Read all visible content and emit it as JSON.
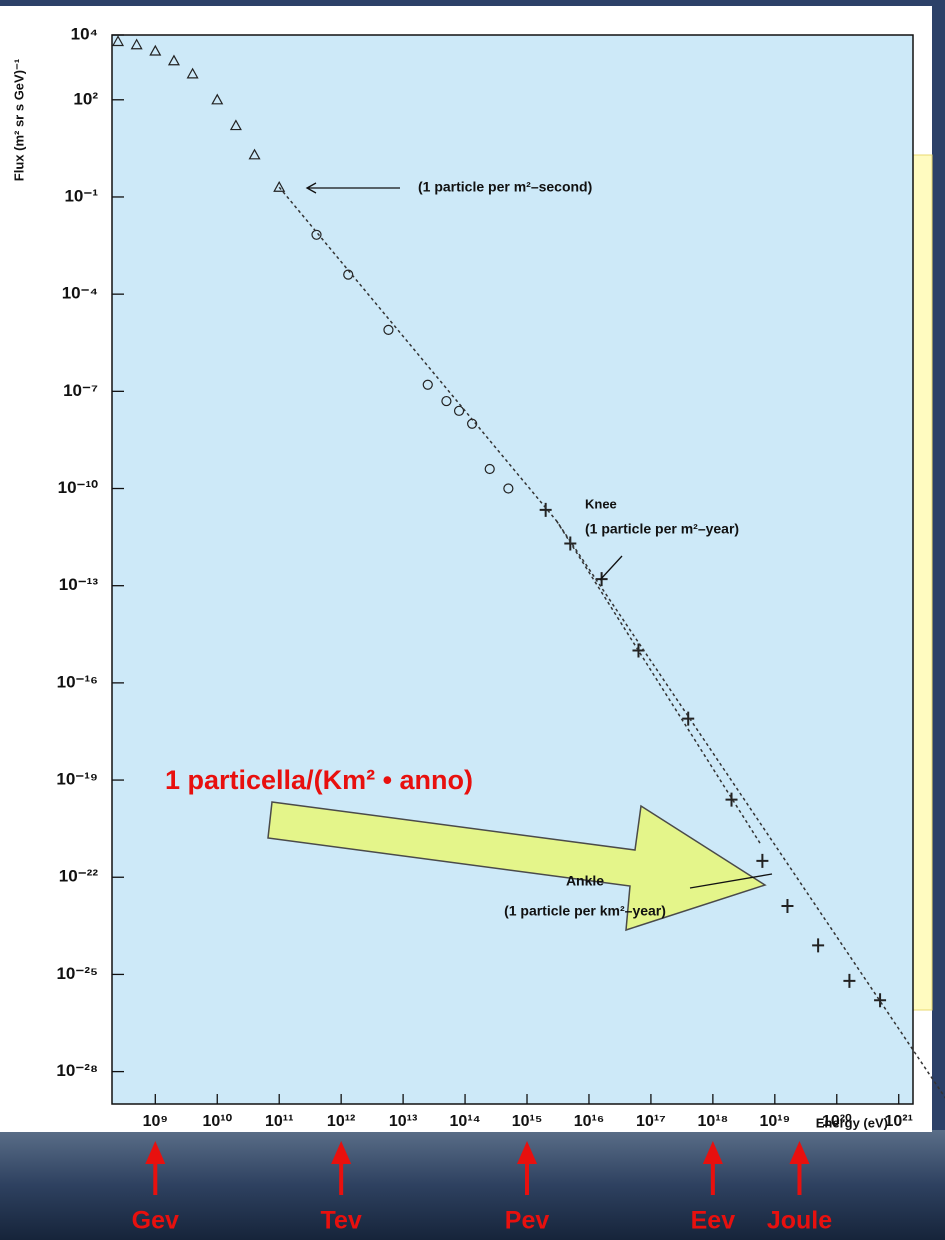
{
  "chart_data": {
    "type": "scatter",
    "y_label": "Flux (m² sr s GeV)⁻¹",
    "x_label": "Energy (eV)",
    "log_x": true,
    "log_y": true,
    "xlim": [
      200000000.0,
      1.7e+21
    ],
    "ylim": [
      1e-29,
      10000.0
    ],
    "xticks": [
      {
        "value": 1000000000.0,
        "label": "10⁹"
      },
      {
        "value": 10000000000.0,
        "label": "10¹⁰"
      },
      {
        "value": 100000000000.0,
        "label": "10¹¹"
      },
      {
        "value": 1000000000000.0,
        "label": "10¹²"
      },
      {
        "value": 10000000000000.0,
        "label": "10¹³"
      },
      {
        "value": 100000000000000.0,
        "label": "10¹⁴"
      },
      {
        "value": 1000000000000000.0,
        "label": "10¹⁵"
      },
      {
        "value": 1e+16,
        "label": "10¹⁶"
      },
      {
        "value": 1e+17,
        "label": "10¹⁷"
      },
      {
        "value": 1e+18,
        "label": "10¹⁸"
      },
      {
        "value": 1e+19,
        "label": "10¹⁹"
      },
      {
        "value": 1e+20,
        "label": "10²⁰"
      },
      {
        "value": 1e+21,
        "label": "10²¹"
      }
    ],
    "yticks": [
      {
        "value": 10000.0,
        "label": "10⁴"
      },
      {
        "value": 100.0,
        "label": "10²"
      },
      {
        "value": 0.1,
        "label": "10⁻¹"
      },
      {
        "value": 0.0001,
        "label": "10⁻⁴"
      },
      {
        "value": 1e-07,
        "label": "10⁻⁷"
      },
      {
        "value": 1e-10,
        "label": "10⁻¹⁰"
      },
      {
        "value": 1e-13,
        "label": "10⁻¹³"
      },
      {
        "value": 1e-16,
        "label": "10⁻¹⁶"
      },
      {
        "value": 1e-19,
        "label": "10⁻¹⁹"
      },
      {
        "value": 1e-22,
        "label": "10⁻²²"
      },
      {
        "value": 1e-25,
        "label": "10⁻²⁵"
      },
      {
        "value": 1e-28,
        "label": "10⁻²⁸"
      }
    ],
    "background": "#cde9f8",
    "series": [
      {
        "marker": "triangle",
        "color": "#222222",
        "x": [
          250000000.0,
          500000000.0,
          1000000000.0,
          2000000000.0,
          4000000000.0,
          10000000000.0,
          20000000000.0,
          40000000000.0,
          100000000000.0
        ],
        "values": [
          6300.0,
          5000.0,
          3200.0,
          1600.0,
          630.0,
          100.0,
          16.0,
          2,
          0.2
        ]
      },
      {
        "marker": "circle",
        "color": "#222222",
        "x": [
          400000000000.0,
          1300000000000.0,
          5800000000000.0,
          25000000000000.0,
          50000000000000.0,
          80000000000000.0,
          130000000000000.0,
          250000000000000.0,
          500000000000000.0
        ],
        "values": [
          0.0068,
          0.0004,
          7.9e-06,
          1.6e-07,
          5e-08,
          2.5e-08,
          1e-08,
          4e-10,
          1e-10
        ]
      },
      {
        "marker": "cross",
        "color": "#222222",
        "x": [
          2000000000000000.0,
          5000000000000000.0,
          1.6e+16,
          6.3e+16,
          4e+17,
          2e+18,
          6.3e+18,
          1.6e+19,
          5e+19,
          1.6e+20,
          5e+20
        ],
        "values": [
          2.2e-11,
          2e-12,
          1.6e-13,
          1e-15,
          7.9e-18,
          2.5e-20,
          3.2e-22,
          1.3e-23,
          7.9e-25,
          6.3e-26,
          1.6e-26
        ]
      },
      {
        "marker": "dashed-line",
        "color": "#333333",
        "x": [
          100000000000.0,
          3000000000000000.0,
          6e+21
        ],
        "values": [
          0.2,
          1e-11,
          1.3e-29
        ]
      },
      {
        "marker": "dashed-line",
        "color": "#333333",
        "x": [
          3000000000000000.0,
          6e+18
        ],
        "values": [
          1e-11,
          1e-21
        ]
      }
    ],
    "annotations": [
      {
        "text": "(1 particle per m²–second)"
      },
      {
        "text": "Knee"
      },
      {
        "text": "(1 particle per m²–year)"
      },
      {
        "text": "Ankle"
      },
      {
        "text": "(1 particle per km²–year)"
      },
      {
        "text": "1 particella/(Km² • anno)"
      }
    ],
    "energy_marks": [
      {
        "label": "Gev",
        "x": 1000000000.0
      },
      {
        "label": "Tev",
        "x": 1000000000000.0
      },
      {
        "label": "Pev",
        "x": 1000000000000000.0
      },
      {
        "label": "Eev",
        "x": 1e+18
      },
      {
        "label": "Joule",
        "x": 2.5e+19
      }
    ]
  }
}
